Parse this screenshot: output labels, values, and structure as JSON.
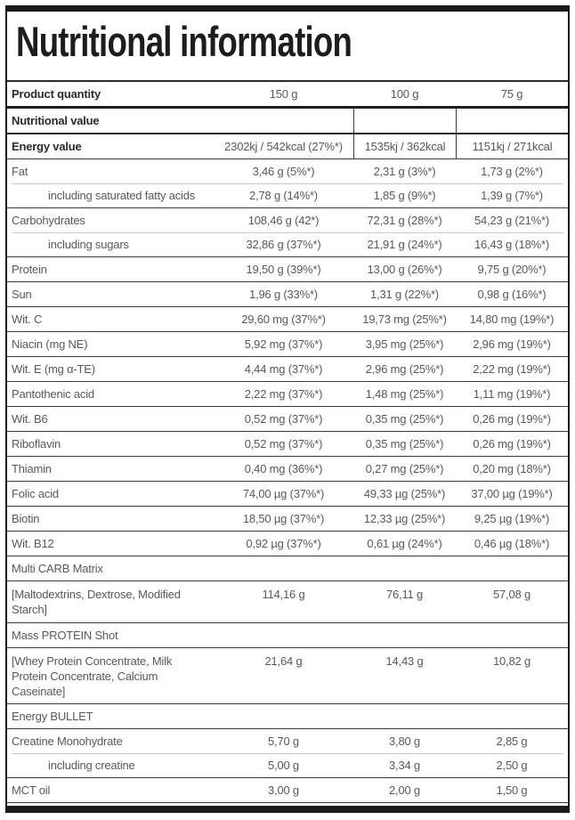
{
  "title": "Nutritional information",
  "colors": {
    "frame_black": "#1a1a1a",
    "text_regular": "#58595b",
    "text_bold": "#2b2b2b",
    "separator_dark": "#3c3c3c",
    "separator_light": "#cccccc",
    "background": "#ffffff"
  },
  "table": {
    "header": {
      "label": "Product quantity",
      "values": [
        "150 g",
        "100 g",
        "75 g"
      ]
    },
    "rows": [
      {
        "label": "Nutritional value",
        "values": [
          "",
          "",
          ""
        ],
        "bold": true,
        "dividers": true,
        "sep": "none"
      },
      {
        "label": "Energy value",
        "values": [
          "2302kj / 542kcal (27%*)",
          "1535kj / 362kcal",
          "1151kj / 271kcal"
        ],
        "bold": true,
        "dividers": true,
        "sep": "heavy"
      },
      {
        "label": "Fat",
        "values": [
          "3,46 g (5%*)",
          "2,31 g (3%*)",
          "1,73 g (2%*)"
        ]
      },
      {
        "label": "including saturated fatty acids",
        "values": [
          "2,78 g (14%*)",
          "1,85 g (9%*)",
          "1,39 g (7%*)"
        ],
        "indent": true,
        "sep": "light"
      },
      {
        "label": "Carbohydrates",
        "values": [
          "108,46 g (42*)",
          "72,31 g (28%*)",
          "54,23 g (21%*)"
        ]
      },
      {
        "label": "including sugars",
        "values": [
          "32,86 g (37%*)",
          "21,91 g (24%*)",
          "16,43 g (18%*)"
        ],
        "indent": true,
        "sep": "light"
      },
      {
        "label": "Protein",
        "values": [
          "19,50 g (39%*)",
          "13,00 g (26%*)",
          "9,75 g (20%*)"
        ]
      },
      {
        "label": "Sun",
        "values": [
          "1,96 g (33%*)",
          "1,31 g (22%*)",
          "0,98 g (16%*)"
        ]
      },
      {
        "label": "Wit. C",
        "values": [
          "29,60 mg (37%*)",
          "19,73 mg (25%*)",
          "14,80 mg (19%*)"
        ]
      },
      {
        "label": "Niacin (mg NE)",
        "values": [
          "5,92 mg (37%*)",
          "3,95 mg (25%*)",
          "2,96 mg (19%*)"
        ]
      },
      {
        "label": "Wit. E (mg α-TE)",
        "values": [
          "4,44 mg (37%*)",
          "2,96 mg (25%*)",
          "2,22 mg (19%*)"
        ]
      },
      {
        "label": "Pantothenic acid",
        "values": [
          "2,22 mg (37%*)",
          "1,48 mg (25%*)",
          "1,11 mg (19%*)"
        ]
      },
      {
        "label": "Wit. B6",
        "values": [
          "0,52 mg (37%*)",
          "0,35 mg (25%*)",
          "0,26 mg (19%*)"
        ]
      },
      {
        "label": "Riboflavin",
        "values": [
          "0,52 mg (37%*)",
          "0,35 mg (25%*)",
          "0,26 mg (19%*)"
        ]
      },
      {
        "label": "Thiamin",
        "values": [
          "0,40 mg (36%*)",
          "0,27 mg (25%*)",
          "0,20 mg (18%*)"
        ]
      },
      {
        "label": "Folic acid",
        "values": [
          "74,00 µg (37%*)",
          "49,33 µg (25%*)",
          "37,00 µg (19%*)"
        ]
      },
      {
        "label": "Biotin",
        "values": [
          "18,50 µg (37%*)",
          "12,33 µg (25%*)",
          "9,25 µg (19%*)"
        ]
      },
      {
        "label": "Wit. B12",
        "values": [
          "0,92 µg (37%*)",
          "0,61 µg (24%*)",
          "0,46 µg (18%*)"
        ]
      },
      {
        "label": "Multi CARB Matrix",
        "values": [
          "",
          "",
          ""
        ]
      },
      {
        "label": "[Maltodextrins, Dextrose, Modified Starch]",
        "values": [
          "114,16 g",
          "76,11 g",
          "57,08 g"
        ],
        "tall": true
      },
      {
        "label": "Mass PROTEIN Shot",
        "values": [
          "",
          "",
          ""
        ]
      },
      {
        "label": "[Whey Protein Concentrate, Milk Protein Concentrate, Calcium Caseinate]",
        "values": [
          "21,64 g",
          "14,43 g",
          "10,82 g"
        ],
        "tall": true
      },
      {
        "label": "Energy BULLET",
        "values": [
          "",
          "",
          ""
        ]
      },
      {
        "label": "Creatine Monohydrate",
        "values": [
          "5,70 g",
          "3,80 g",
          "2,85 g"
        ]
      },
      {
        "label": "including creatine",
        "values": [
          "5,00 g",
          "3,34 g",
          "2,50 g"
        ],
        "indent": true,
        "sep": "light"
      },
      {
        "label": "MCT oil",
        "values": [
          "3,00 g",
          "2,00 g",
          "1,50 g"
        ]
      }
    ]
  }
}
